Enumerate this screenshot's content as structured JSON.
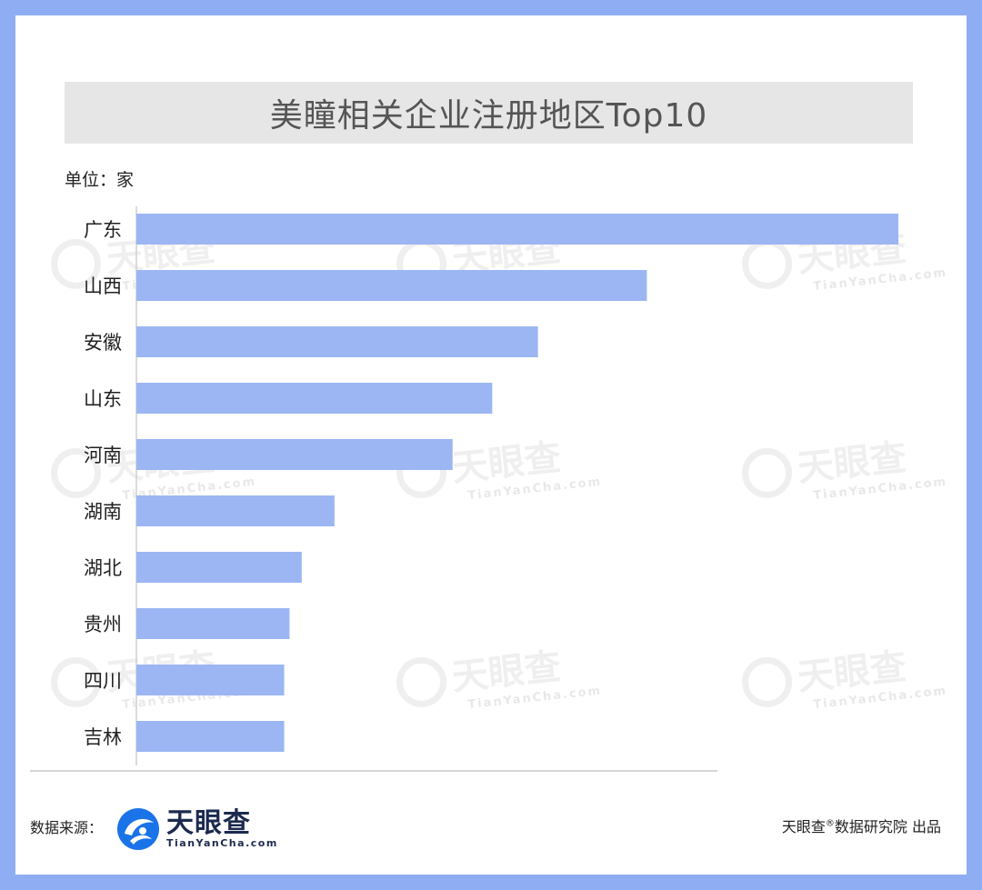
{
  "title": "美瞳相关企业注册地区Top10",
  "unit_label": "单位：家",
  "chart_data": {
    "type": "bar",
    "orientation": "horizontal",
    "title": "美瞳相关企业注册地区Top10",
    "ylabel": "单位：家",
    "categories": [
      "广东",
      "山西",
      "安徽",
      "山东",
      "河南",
      "湖南",
      "湖北",
      "贵州",
      "四川",
      "吉林"
    ],
    "values": [
      100,
      67,
      52.7,
      46.7,
      41.5,
      26,
      21.7,
      20.1,
      19.4,
      19.4
    ],
    "xlim": [
      0,
      100
    ],
    "grid": false,
    "bar_color": "#9cb6f3"
  },
  "watermark": {
    "text": "天眼查",
    "sub": "TianYanCha.com"
  },
  "footer": {
    "source_label": "数据来源：",
    "logo_main": "天眼查",
    "logo_sub": "TianYanCha.com",
    "credit_pre": "天眼查",
    "credit_mark": "®",
    "credit_post": "数据研究院 出品"
  },
  "colors": {
    "frame": "#8fadf2",
    "bar": "#9cb6f3",
    "title_bg": "#e6e6e6",
    "logo_blue": "#1a73e8"
  }
}
